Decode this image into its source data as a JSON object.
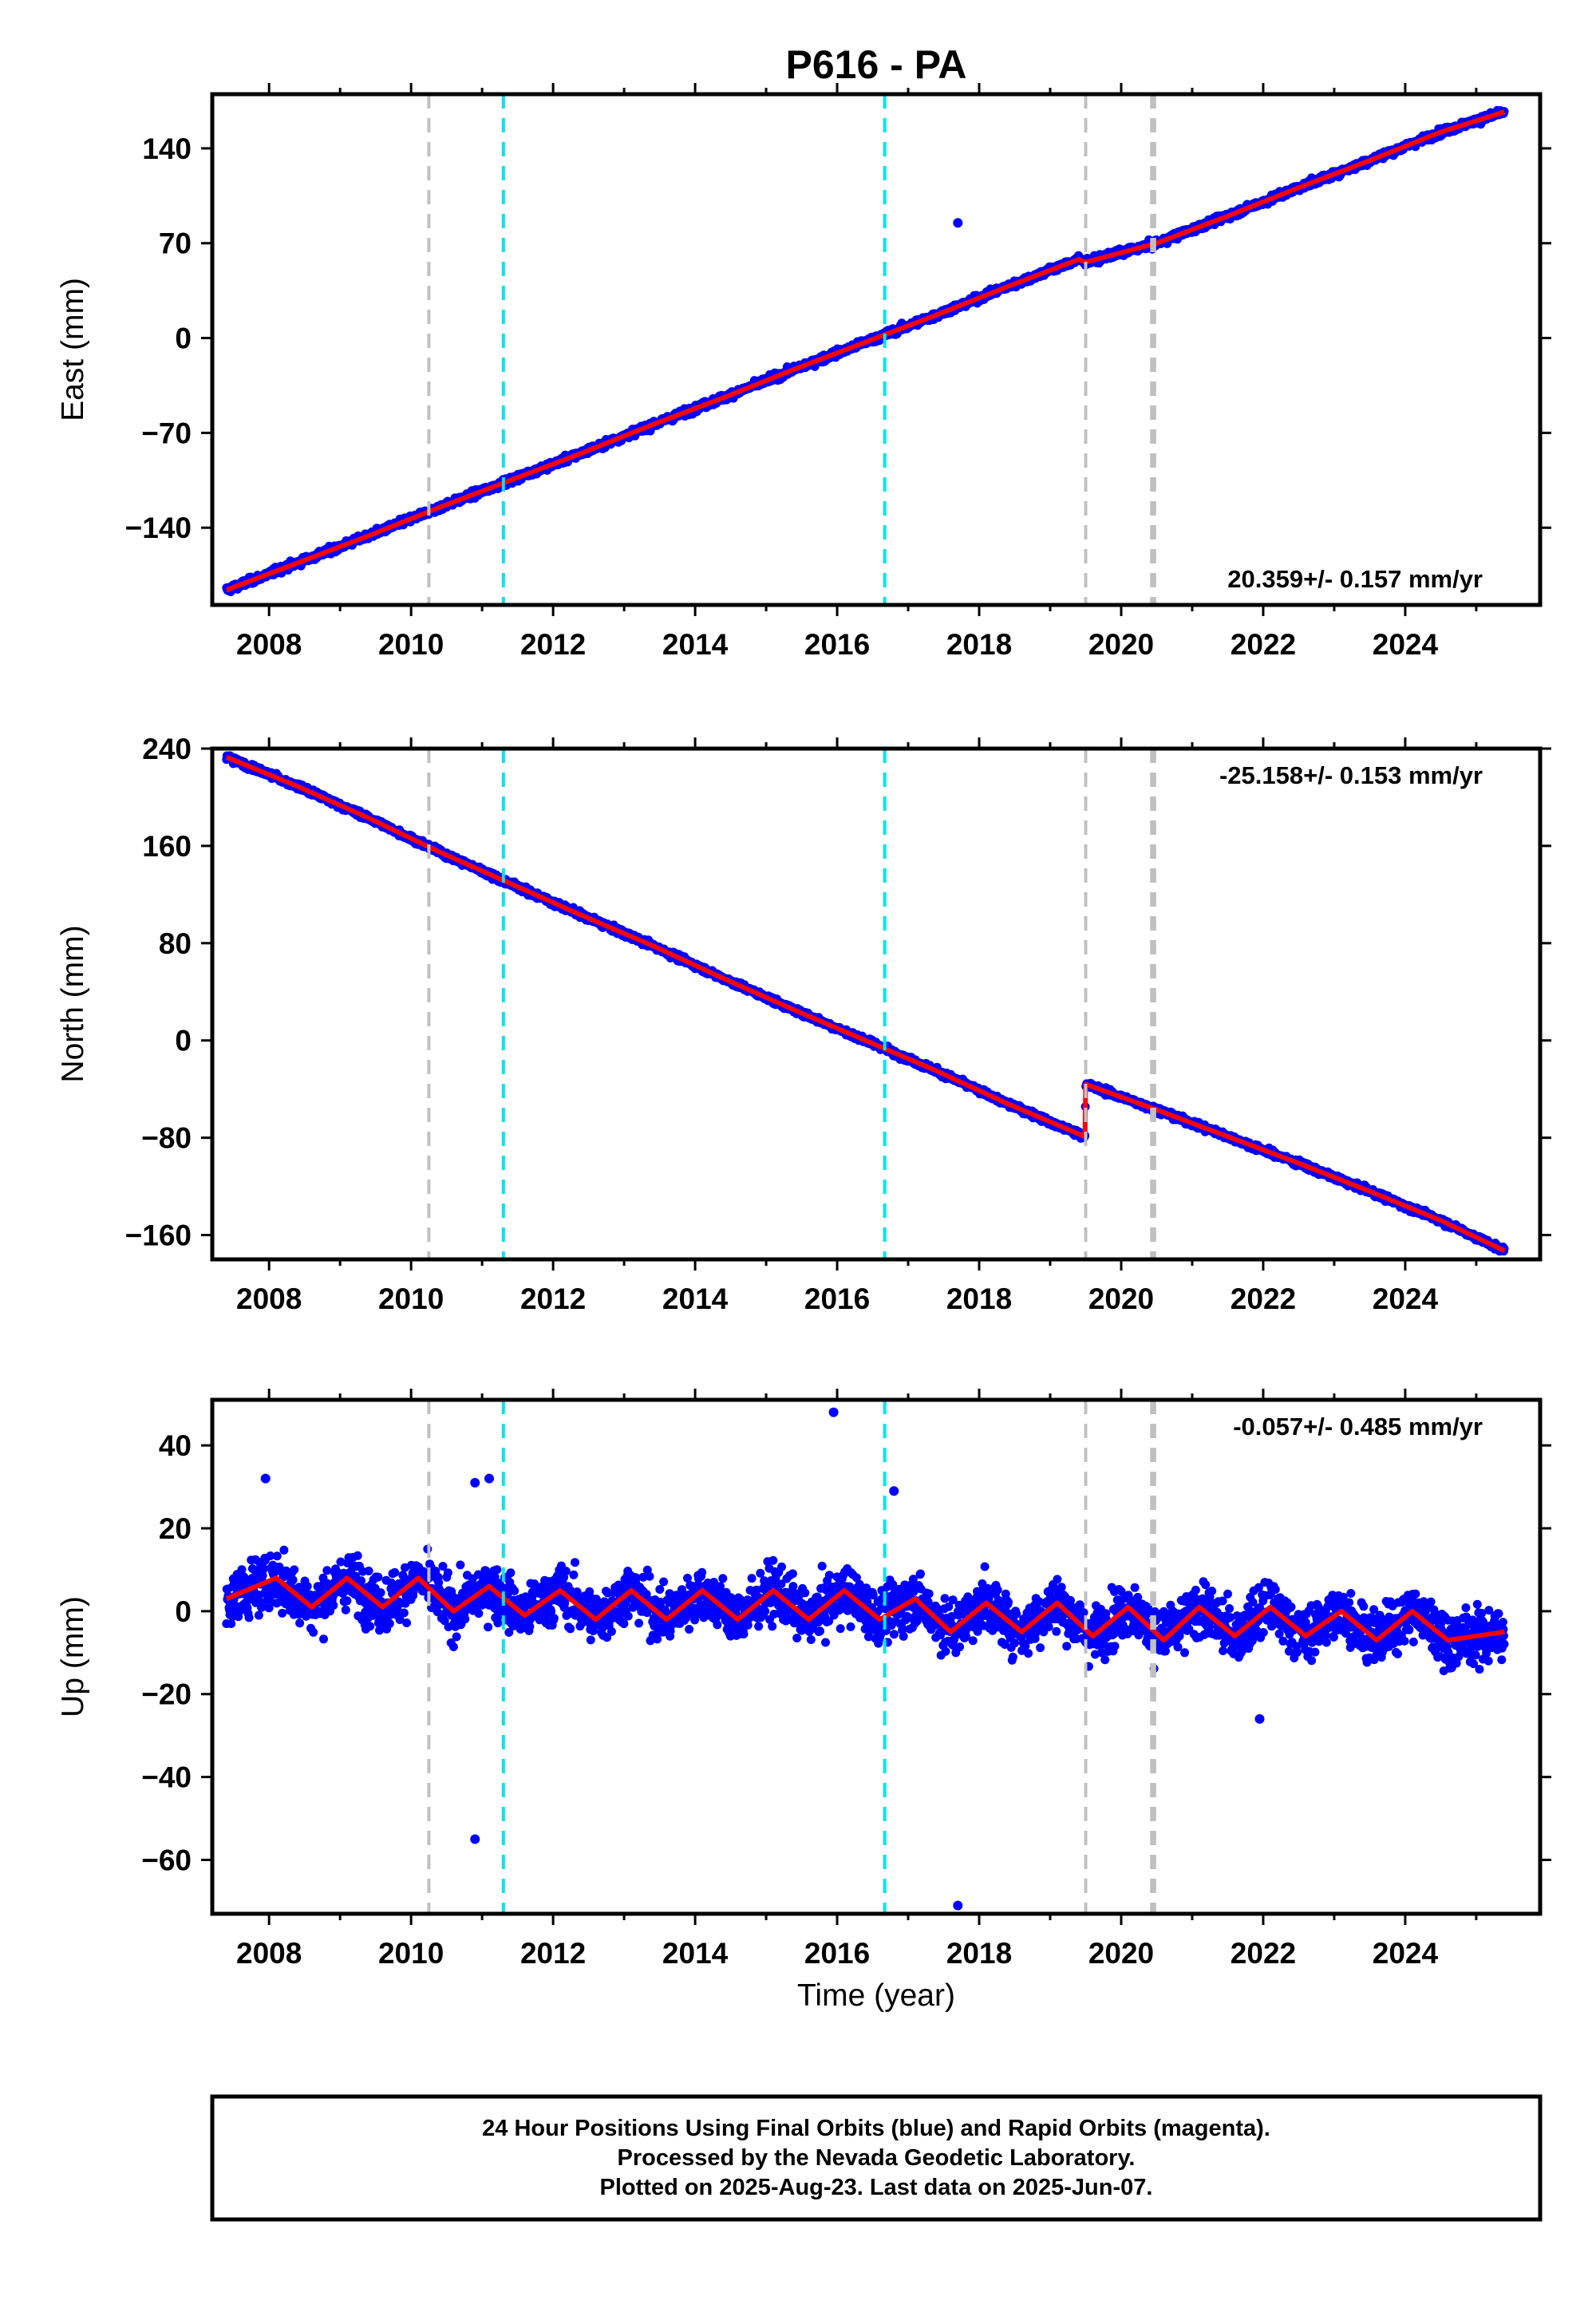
{
  "title": "P616 - PA",
  "xlabel": "Time (year)",
  "footer": {
    "line1": "24 Hour Positions Using Final Orbits (blue) and Rapid Orbits (magenta).",
    "line2": "Processed by the Nevada Geodetic Laboratory.",
    "line3": "Plotted on 2025-Aug-23. Last data on 2025-Jun-07."
  },
  "colors": {
    "data": "#0000ff",
    "model": "#ff0000",
    "gray_event": "#c0c0c0",
    "cyan_event": "#00e5ee",
    "frame": "#000000"
  },
  "chart_data": [
    {
      "type": "scatter",
      "panel": "east",
      "ylabel": "East (mm)",
      "rate_label": "20.359+/- 0.157 mm/yr",
      "xlim": [
        2007.2,
        2025.9
      ],
      "ylim": [
        -197,
        180
      ],
      "x_ticks": [
        2008,
        2010,
        2012,
        2014,
        2016,
        2018,
        2020,
        2022,
        2024
      ],
      "y_ticks": [
        -140,
        -70,
        0,
        70,
        140
      ],
      "y_tick_labels": [
        "−140",
        "−70",
        "0",
        "70",
        "140"
      ],
      "series": [
        {
          "role": "model",
          "x": [
            2007.4,
            2008.4,
            2009.4,
            2010.4,
            2011.4,
            2012.4,
            2013.4,
            2014.4,
            2015.4,
            2016.4,
            2017.4,
            2018.4,
            2019.4,
            2019.5,
            2020.5,
            2021.5,
            2022.5,
            2023.5,
            2024.5,
            2025.4
          ],
          "y": [
            -186,
            -166,
            -146,
            -125,
            -105,
            -85,
            -64,
            -44,
            -23,
            -3,
            17,
            38,
            58,
            56,
            70,
            90,
            111,
            131,
            152,
            167
          ]
        }
      ],
      "outliers": [
        {
          "x": 2017.7,
          "y": 85
        }
      ]
    },
    {
      "type": "scatter",
      "panel": "north",
      "ylabel": "North (mm)",
      "rate_label": "-25.158+/- 0.153 mm/yr",
      "xlim": [
        2007.2,
        2025.9
      ],
      "ylim": [
        -180,
        240
      ],
      "x_ticks": [
        2008,
        2010,
        2012,
        2014,
        2016,
        2018,
        2020,
        2022,
        2024
      ],
      "y_ticks": [
        -160,
        -80,
        0,
        80,
        160,
        240
      ],
      "y_tick_labels": [
        "−160",
        "−80",
        "0",
        "80",
        "160",
        "240"
      ],
      "series": [
        {
          "role": "model",
          "x": [
            2007.4,
            2008.4,
            2009.4,
            2010.4,
            2011.4,
            2012.4,
            2013.4,
            2014.4,
            2015.4,
            2016.4,
            2017.4,
            2018.4,
            2019.49,
            2019.5,
            2020.5,
            2021.5,
            2022.5,
            2023.5,
            2024.5,
            2025.4
          ],
          "y": [
            233,
            209,
            183,
            155,
            129,
            103,
            78,
            51,
            25,
            0,
            -25,
            -52,
            -79,
            -36,
            -57,
            -79,
            -101,
            -124,
            -148,
            -173
          ]
        }
      ],
      "outliers": []
    },
    {
      "type": "scatter",
      "panel": "up",
      "ylabel": "Up (mm)",
      "rate_label": "-0.057+/- 0.485 mm/yr",
      "xlim": [
        2007.2,
        2025.9
      ],
      "ylim": [
        -73,
        51
      ],
      "x_ticks": [
        2008,
        2010,
        2012,
        2014,
        2016,
        2018,
        2020,
        2022,
        2024
      ],
      "y_ticks": [
        -60,
        -40,
        -20,
        0,
        20,
        40
      ],
      "y_tick_labels": [
        "−60",
        "−40",
        "−20",
        "0",
        "20",
        "40"
      ],
      "series": [
        {
          "role": "model",
          "x": [
            2007.4,
            2008.1,
            2008.6,
            2009.1,
            2009.6,
            2010.1,
            2010.6,
            2011.1,
            2011.6,
            2012.1,
            2012.6,
            2013.1,
            2013.6,
            2014.1,
            2014.6,
            2015.1,
            2015.6,
            2016.1,
            2016.6,
            2017.1,
            2017.6,
            2018.1,
            2018.6,
            2019.1,
            2019.6,
            2020.1,
            2020.6,
            2021.1,
            2021.6,
            2022.1,
            2022.6,
            2023.1,
            2023.6,
            2024.1,
            2024.6,
            2025.4
          ],
          "y": [
            3,
            8,
            1,
            8,
            1,
            8,
            0,
            6,
            -1,
            5,
            -2,
            5,
            -2,
            5,
            -2,
            5,
            -2,
            5,
            -2,
            3,
            -5,
            2,
            -5,
            2,
            -6,
            1,
            -7,
            1,
            -6,
            1,
            -6,
            0,
            -7,
            0,
            -7,
            -5
          ]
        }
      ],
      "outliers": [
        {
          "x": 2007.95,
          "y": 32
        },
        {
          "x": 2010.9,
          "y": -55
        },
        {
          "x": 2010.9,
          "y": 31
        },
        {
          "x": 2011.1,
          "y": 32
        },
        {
          "x": 2015.95,
          "y": 48
        },
        {
          "x": 2017.7,
          "y": -71
        },
        {
          "x": 2021.95,
          "y": -26
        },
        {
          "x": 2016.8,
          "y": 29
        }
      ]
    }
  ],
  "event_lines": {
    "gray": [
      2010.25,
      2019.5,
      2020.43,
      2020.47
    ],
    "cyan": [
      2011.3,
      2016.67
    ]
  }
}
